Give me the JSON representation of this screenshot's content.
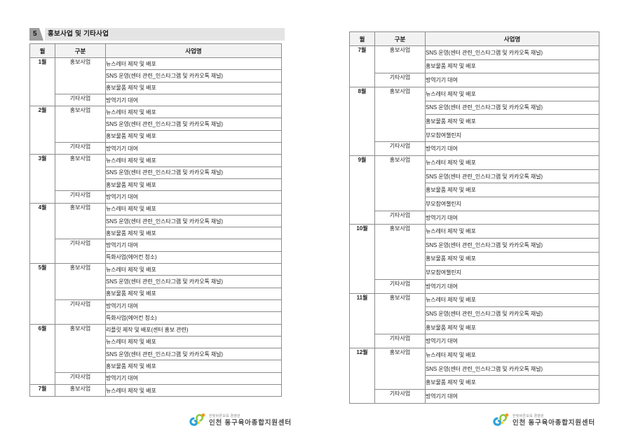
{
  "section": {
    "number": "5",
    "title": "홍보사업 및 기타사업"
  },
  "table_headers": {
    "month": "월",
    "category": "구분",
    "project": "사업명"
  },
  "tables": [
    {
      "side": "left",
      "months": [
        {
          "month": "1월",
          "groups": [
            {
              "category": "홍보사업",
              "items": [
                "뉴스레터 제작 및 배포",
                "SNS 운영(센터 관련_인스타그램 및 카카오톡 채널)",
                "홍보물품 제작 및 배포"
              ]
            },
            {
              "category": "기타사업",
              "items": [
                "방역기기 대여"
              ]
            }
          ]
        },
        {
          "month": "2월",
          "groups": [
            {
              "category": "홍보사업",
              "items": [
                "뉴스레터 제작 및 배포",
                "SNS 운영(센터 관련_인스타그램 및 카카오톡 채널)",
                "홍보물품 제작 및 배포"
              ]
            },
            {
              "category": "기타사업",
              "items": [
                "방역기기 대여"
              ]
            }
          ]
        },
        {
          "month": "3월",
          "groups": [
            {
              "category": "홍보사업",
              "items": [
                "뉴스레터 제작 및 배포",
                "SNS 운영(센터 관련_인스타그램 및 카카오톡 채널)",
                "홍보물품 제작 및 배포"
              ]
            },
            {
              "category": "기타사업",
              "items": [
                "방역기기 대여"
              ]
            }
          ]
        },
        {
          "month": "4월",
          "groups": [
            {
              "category": "홍보사업",
              "items": [
                "뉴스레터 제작 및 배포",
                "SNS 운영(센터 관련_인스타그램 및 카카오톡 채널)",
                "홍보물품 제작 및 배포"
              ]
            },
            {
              "category": "기타사업",
              "items": [
                "방역기기 대여",
                "특화사업(에어컨 청소)"
              ]
            }
          ]
        },
        {
          "month": "5월",
          "groups": [
            {
              "category": "홍보사업",
              "items": [
                "뉴스레터 제작 및 배포",
                "SNS 운영(센터 관련_인스타그램 및 카카오톡 채널)",
                "홍보물품 제작 및 배포"
              ]
            },
            {
              "category": "기타사업",
              "items": [
                "방역기기 대여",
                "특화사업(에어컨 청소)"
              ]
            }
          ]
        },
        {
          "month": "6월",
          "groups": [
            {
              "category": "홍보사업",
              "items": [
                "리플릿 제작 및 배포(센터 홍보 관련)",
                "뉴스레터 제작 및 배포",
                "SNS 운영(센터 관련_인스타그램 및 카카오톡 채널)",
                "홍보물품 제작 및 배포"
              ]
            },
            {
              "category": "기타사업",
              "items": [
                "방역기기 대여"
              ]
            }
          ]
        },
        {
          "month": "7월",
          "groups": [
            {
              "category": "홍보사업",
              "items": [
                "뉴스레터 제작 및 배포"
              ]
            }
          ]
        }
      ]
    },
    {
      "side": "right",
      "months": [
        {
          "month": "7월",
          "groups": [
            {
              "category": "홍보사업",
              "items": [
                "SNS 운영(센터 관련_인스타그램 및 카카오톡 채널)",
                "홍보물품 제작 및 배포"
              ]
            },
            {
              "category": "기타사업",
              "items": [
                "방역기기 대여"
              ]
            }
          ]
        },
        {
          "month": "8월",
          "groups": [
            {
              "category": "홍보사업",
              "items": [
                "뉴스레터 제작 및 배포",
                "SNS 운영(센터 관련_인스타그램 및 카카오톡 채널)",
                "홍보물품 제작 및 배포",
                "부모참여챌린지"
              ]
            },
            {
              "category": "기타사업",
              "items": [
                "방역기기 대여"
              ]
            }
          ]
        },
        {
          "month": "9월",
          "groups": [
            {
              "category": "홍보사업",
              "items": [
                "뉴스레터 제작 및 배포",
                "SNS 운영(센터 관련_인스타그램 및 카카오톡 채널)",
                "홍보물품 제작 및 배포",
                "부모참여챌린지"
              ]
            },
            {
              "category": "기타사업",
              "items": [
                "방역기기 대여"
              ]
            }
          ]
        },
        {
          "month": "10월",
          "groups": [
            {
              "category": "홍보사업",
              "items": [
                "뉴스레터 제작 및 배포",
                "SNS 운영(센터 관련_인스타그램 및 카카오톡 채널)",
                "홍보물품 제작 및 배포",
                "부모참여챌린지"
              ]
            },
            {
              "category": "기타사업",
              "items": [
                "방역기기 대여"
              ]
            }
          ]
        },
        {
          "month": "11월",
          "groups": [
            {
              "category": "홍보사업",
              "items": [
                "뉴스레터 제작 및 배포",
                "SNS 운영(센터 관련_인스타그램 및 카카오톡 채널)",
                "홍보물품 제작 및 배포"
              ]
            },
            {
              "category": "기타사업",
              "items": [
                "방역기기 대여"
              ]
            }
          ]
        },
        {
          "month": "12월",
          "groups": [
            {
              "category": "홍보사업",
              "items": [
                "뉴스레터 제작 및 배포",
                "SNS 운영(센터 관련_인스타그램 및 카카오톡 채널)",
                "홍보물품 제작 및 배포"
              ]
            },
            {
              "category": "기타사업",
              "items": [
                "방역기기 대여"
              ]
            }
          ]
        }
      ]
    }
  ],
  "footer": {
    "tagline": "한빛바른보육 경영원",
    "org": "인천 동구육아종합지원센터"
  },
  "colors": {
    "strip_bg": "#e4e4e4",
    "badge_bg": "#9e9e9e",
    "header_bg": "#f2f2f2",
    "border_inner": "#8c8c8c",
    "border_outer": "#4a4a4a",
    "text": "#262626",
    "logo_blue": "#2aa4dc",
    "logo_green": "#8dc63f",
    "logo_orange": "#f7941d",
    "logo_yellow": "#ffd200"
  }
}
